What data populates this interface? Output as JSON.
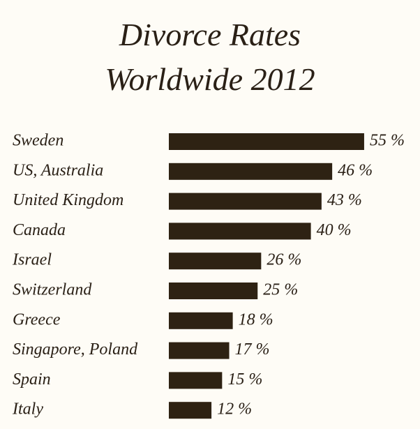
{
  "chart_data": {
    "type": "bar",
    "orientation": "horizontal",
    "title": "Divorce Rates\nWorldwide 2012",
    "categories": [
      "Sweden",
      "US, Australia",
      "United Kingdom",
      "Canada",
      "Israel",
      "Switzerland",
      "Greece",
      "Singapore, Poland",
      "Spain",
      "Italy"
    ],
    "values": [
      55,
      46,
      43,
      40,
      26,
      25,
      18,
      17,
      15,
      12
    ],
    "value_labels": [
      "55 %",
      "46 %",
      "43 %",
      "40 %",
      "26 %",
      "25 %",
      "18 %",
      "17 %",
      "15 %",
      "12 %"
    ],
    "color": "#2e2213"
  }
}
